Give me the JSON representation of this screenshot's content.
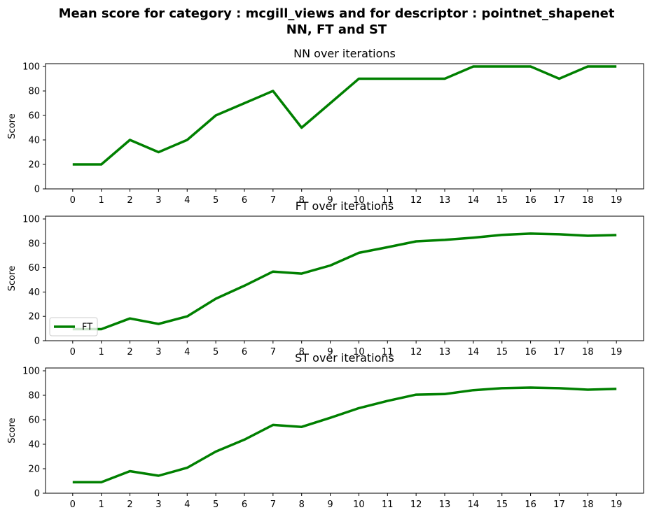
{
  "figure": {
    "suptitle_line1": "Mean score for category : mcgill_views and for descriptor : pointnet_shapenet",
    "suptitle_line2": "NN, FT and ST",
    "line_color": "#008000"
  },
  "chart_data": [
    {
      "type": "line",
      "title": "NN over iterations",
      "xlabel": "",
      "ylabel": "Score",
      "x": [
        0,
        1,
        2,
        3,
        4,
        5,
        6,
        7,
        8,
        9,
        10,
        11,
        12,
        13,
        14,
        15,
        16,
        17,
        18,
        19
      ],
      "ylim": [
        0,
        100
      ],
      "yticks": [
        0,
        20,
        40,
        60,
        80,
        100
      ],
      "grid": false,
      "series": [
        {
          "values": [
            20,
            20,
            40,
            30,
            40,
            60,
            70,
            80,
            50,
            70,
            90,
            90,
            90,
            90,
            100,
            100,
            100,
            90,
            100,
            100
          ]
        }
      ],
      "legend": null
    },
    {
      "type": "line",
      "title": "FT over iterations",
      "xlabel": "",
      "ylabel": "Score",
      "x": [
        0,
        1,
        2,
        3,
        4,
        5,
        6,
        7,
        8,
        9,
        10,
        11,
        12,
        13,
        14,
        15,
        16,
        17,
        18,
        19
      ],
      "ylim": [
        0,
        100
      ],
      "yticks": [
        0,
        20,
        40,
        60,
        80,
        100
      ],
      "grid": false,
      "series": [
        {
          "name": "FT",
          "values": [
            9.5,
            9.5,
            18.3,
            13.8,
            20,
            34.5,
            45.2,
            56.8,
            55.1,
            61.8,
            72.2,
            76.8,
            81.6,
            82.8,
            84.6,
            86.9,
            88,
            87.4,
            86.2,
            86.8
          ]
        }
      ],
      "legend": {
        "placement": "lower-left",
        "entries": [
          "FT"
        ]
      }
    },
    {
      "type": "line",
      "title": "ST over iterations",
      "xlabel": "",
      "ylabel": "Score",
      "x": [
        0,
        1,
        2,
        3,
        4,
        5,
        6,
        7,
        8,
        9,
        10,
        11,
        12,
        13,
        14,
        15,
        16,
        17,
        18,
        19
      ],
      "ylim": [
        0,
        100
      ],
      "yticks": [
        0,
        20,
        40,
        60,
        80,
        100
      ],
      "grid": false,
      "series": [
        {
          "values": [
            9,
            9,
            18,
            14.3,
            20.8,
            34,
            43.8,
            55.8,
            54.2,
            61.6,
            69.5,
            75.4,
            80.5,
            81,
            84.2,
            85.8,
            86.3,
            85.8,
            84.6,
            85.2
          ]
        }
      ],
      "legend": null
    }
  ]
}
